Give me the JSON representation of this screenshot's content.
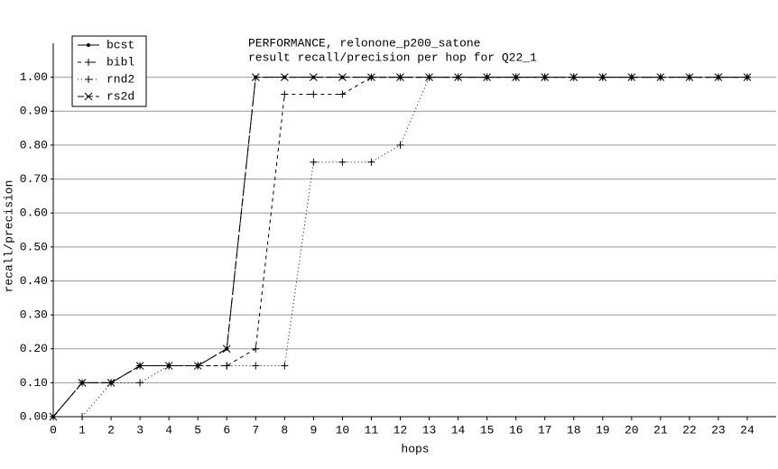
{
  "chart_data": {
    "type": "line",
    "title": "PERFORMANCE, relonone_p200_satone",
    "subtitle": "result recall/precision per hop for Q22_1",
    "x_label": "hops",
    "y_label": "recall/precision",
    "x": [
      0,
      1,
      2,
      3,
      4,
      5,
      6,
      7,
      8,
      9,
      10,
      11,
      12,
      13,
      14,
      15,
      16,
      17,
      18,
      19,
      20,
      21,
      22,
      23,
      24
    ],
    "series": [
      {
        "name": "bcst",
        "color": "#000000",
        "values": [
          0,
          0.1,
          0.1,
          0.15,
          0.15,
          0.15,
          0.2,
          1,
          1,
          1,
          1,
          1,
          1,
          1,
          1,
          1,
          1,
          1,
          1,
          1,
          1,
          1,
          1,
          1,
          1
        ]
      },
      {
        "name": "bibl",
        "color": "#000000",
        "values": [
          0,
          0.1,
          0.1,
          0.15,
          0.15,
          0.15,
          0.15,
          0.2,
          0.95,
          0.95,
          0.95,
          1,
          1,
          1,
          1,
          1,
          1,
          1,
          1,
          1,
          1,
          1,
          1,
          1,
          1
        ]
      },
      {
        "name": "rnd2",
        "color": "#000000",
        "values": [
          0,
          0,
          0.1,
          0.1,
          0.15,
          0.15,
          0.15,
          0.15,
          0.15,
          0.75,
          0.75,
          0.75,
          0.8,
          1,
          1,
          1,
          1,
          1,
          1,
          1,
          1,
          1,
          1,
          1,
          1
        ]
      },
      {
        "name": "rs2d",
        "color": "#000000",
        "values": [
          0,
          0.1,
          0.1,
          0.15,
          0.15,
          0.15,
          0.2,
          1,
          1,
          1,
          1,
          1,
          1,
          1,
          1,
          1,
          1,
          1,
          1,
          1,
          1,
          1,
          1,
          1,
          1
        ]
      }
    ],
    "xlim": [
      0,
      25
    ],
    "xticks": [
      0,
      1,
      2,
      3,
      4,
      5,
      6,
      7,
      8,
      9,
      10,
      11,
      12,
      13,
      14,
      15,
      16,
      17,
      18,
      19,
      20,
      21,
      22,
      23,
      24
    ],
    "ylim": [
      0,
      1.1
    ],
    "yticks": [
      {
        "value": 0,
        "label": "0.00"
      },
      {
        "value": 0.1,
        "label": "0.10"
      },
      {
        "value": 0.2,
        "label": "0.20"
      },
      {
        "value": 0.3,
        "label": "0.30"
      },
      {
        "value": 0.4,
        "label": "0.40"
      },
      {
        "value": 0.5,
        "label": "0.50"
      },
      {
        "value": 0.6,
        "label": "0.60"
      },
      {
        "value": 0.7,
        "label": "0.70"
      },
      {
        "value": 0.8,
        "label": "0.80"
      },
      {
        "value": 0.9,
        "label": "0.90"
      },
      {
        "value": 1,
        "label": "1.00"
      }
    ],
    "grid": true,
    "legend": "top-left"
  }
}
